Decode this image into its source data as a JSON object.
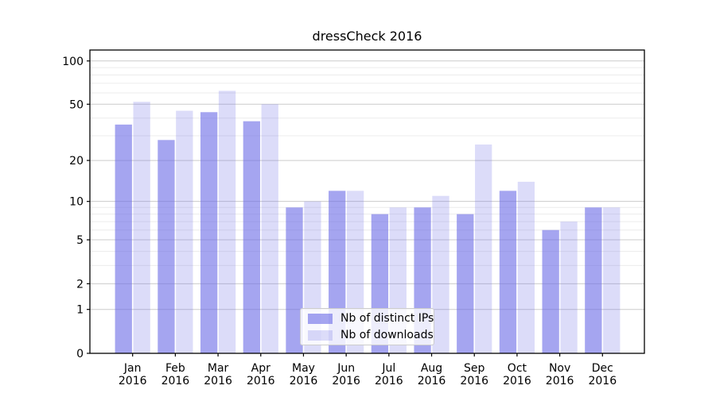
{
  "chart_data": {
    "type": "bar",
    "title": "dressCheck 2016",
    "categories": [
      "Jan 2016",
      "Feb 2016",
      "Mar 2016",
      "Apr 2016",
      "May 2016",
      "Jun 2016",
      "Jul 2016",
      "Aug 2016",
      "Sep 2016",
      "Oct 2016",
      "Nov 2016",
      "Dec 2016"
    ],
    "series": [
      {
        "name": "Nb of distinct IPs",
        "fill": "rgba(105,105,230,0.60)",
        "swatch_hex": "#a5a5f0",
        "values": [
          36,
          28,
          44,
          38,
          9,
          12,
          8,
          9,
          8,
          12,
          6,
          9
        ]
      },
      {
        "name": "Nb of downloads",
        "fill": "rgba(105,105,230,0.235)",
        "swatch_hex": "#dcdcf9",
        "values": [
          52,
          45,
          62,
          50,
          10,
          12,
          9,
          11,
          26,
          14,
          7,
          9
        ]
      }
    ],
    "xlabel": "",
    "ylabel": "",
    "yscale": "symlog (log1p)",
    "ylim": [
      0,
      119
    ],
    "yticks_major": [
      0,
      1,
      2,
      5,
      10,
      20,
      50,
      100
    ],
    "yticks_minor": [
      3,
      4,
      6,
      7,
      8,
      9,
      30,
      40,
      60,
      70,
      80,
      90
    ],
    "grid": true,
    "legend_position": "lower center",
    "colors": {
      "grid_major": "#cccccc",
      "grid_minor": "#ececec",
      "axis": "#000000",
      "text": "#000000",
      "background": "#ffffff"
    }
  }
}
